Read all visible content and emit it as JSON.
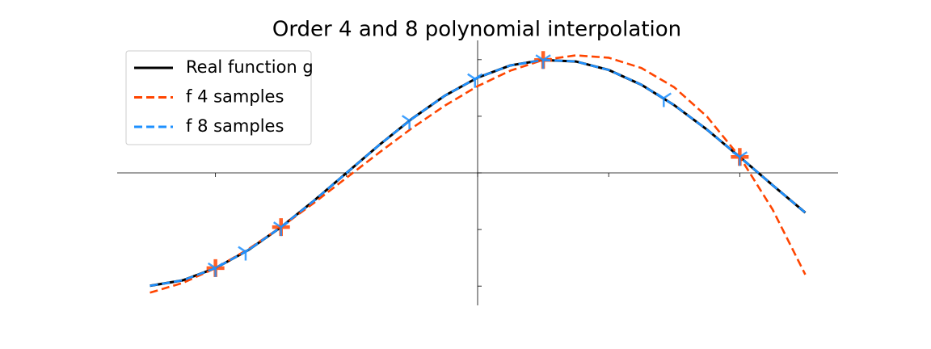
{
  "chart_data": {
    "type": "line",
    "title": "Order 4 and 8 polynomial interpolation",
    "xlim": [
      -2.75,
      2.75
    ],
    "ylim": [
      -1.17,
      1.17
    ],
    "xticks": [
      -2,
      -1,
      0,
      1,
      2
    ],
    "yticks": [
      -1,
      -0.5,
      0,
      0.5,
      1
    ],
    "legend": "upper left",
    "x": [
      -2.5,
      -2.25,
      -2,
      -1.75,
      -1.5,
      -1.25,
      -1,
      -0.75,
      -0.5,
      -0.25,
      0,
      0.25,
      0.5,
      0.75,
      1,
      1.25,
      1.5,
      1.75,
      2,
      2.25,
      2.5
    ],
    "series": [
      {
        "name": "Real function g",
        "color": "#000000",
        "dash": false,
        "values": [
          -0.997,
          -0.949,
          -0.841,
          -0.682,
          -0.479,
          -0.247,
          0,
          0.247,
          0.479,
          0.682,
          0.841,
          0.949,
          0.997,
          0.984,
          0.909,
          0.778,
          0.598,
          0.382,
          0.141,
          -0.108,
          -0.351
        ]
      },
      {
        "name": "f 4 samples",
        "color": "#ff4500",
        "dash": true,
        "values": [
          -1.058,
          -0.972,
          -0.841,
          -0.674,
          -0.479,
          -0.266,
          -0.043,
          0.18,
          0.396,
          0.594,
          0.766,
          0.903,
          0.997,
          1.038,
          1.017,
          0.926,
          0.756,
          0.497,
          0.141,
          -0.322,
          -0.898
        ],
        "marker": "plus",
        "sample_x": [
          -2,
          -1.5,
          0.5,
          2
        ],
        "sample_y": [
          -0.841,
          -0.479,
          0.997,
          0.141
        ]
      },
      {
        "name": "f 8 samples",
        "color": "#1e90ff",
        "dash": true,
        "values": [
          -0.997,
          -0.949,
          -0.841,
          -0.682,
          -0.479,
          -0.247,
          0,
          0.247,
          0.479,
          0.682,
          0.841,
          0.949,
          0.997,
          0.984,
          0.909,
          0.778,
          0.598,
          0.382,
          0.141,
          -0.108,
          -0.351
        ],
        "marker": "tri",
        "sample_x": [
          -2,
          -1.77,
          -1.5,
          -0.52,
          -0.02,
          0.5,
          1.42,
          2
        ],
        "sample_y": [
          -0.841,
          -0.696,
          -0.479,
          0.462,
          0.83,
          0.997,
          0.66,
          0.141
        ]
      }
    ]
  }
}
